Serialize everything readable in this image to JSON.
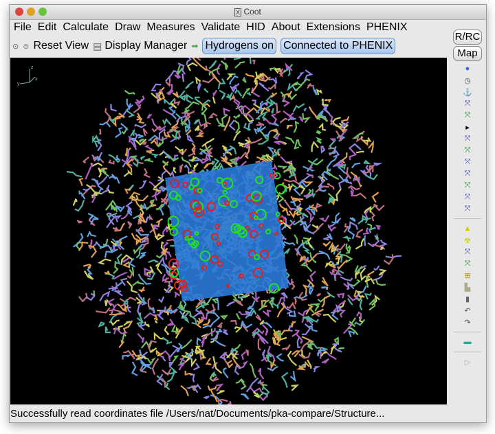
{
  "window": {
    "title": "Coot",
    "title_icon": "x11-icon"
  },
  "menu": [
    "File",
    "Edit",
    "Calculate",
    "Draw",
    "Measures",
    "Validate",
    "HID",
    "About",
    "Extensions",
    "PHENIX"
  ],
  "toolbar": {
    "reset_view": "Reset View",
    "display_manager": "Display Manager",
    "hydrogens": "Hydrogens on",
    "phenix": "Connected to PHENIX"
  },
  "side": {
    "rrc": "R/RC",
    "map": "Map",
    "icons": [
      "sphere-icon",
      "clock-icon",
      "anchor-icon",
      "refine-icon",
      "regularize-icon",
      "arrow-right-icon",
      "rigid-body-icon",
      "add-residue-icon",
      "rotamer-icon",
      "torsion-icon",
      "flip-icon",
      "side-chain-icon",
      "edit-chi-icon",
      "bond-icon",
      "radiation-icon",
      "add-atom-icon",
      "add-terminal-icon",
      "add-alt-conf-icon",
      "stamp-icon",
      "delete-icon",
      "undo-icon",
      "redo-icon",
      "flag-icon",
      "play-icon"
    ]
  },
  "axes": {
    "z": "z",
    "x": "x",
    "y": "y"
  },
  "status": "Successfully read coordinates file /Users/nat/Documents/pka-compare/Structure..."
}
